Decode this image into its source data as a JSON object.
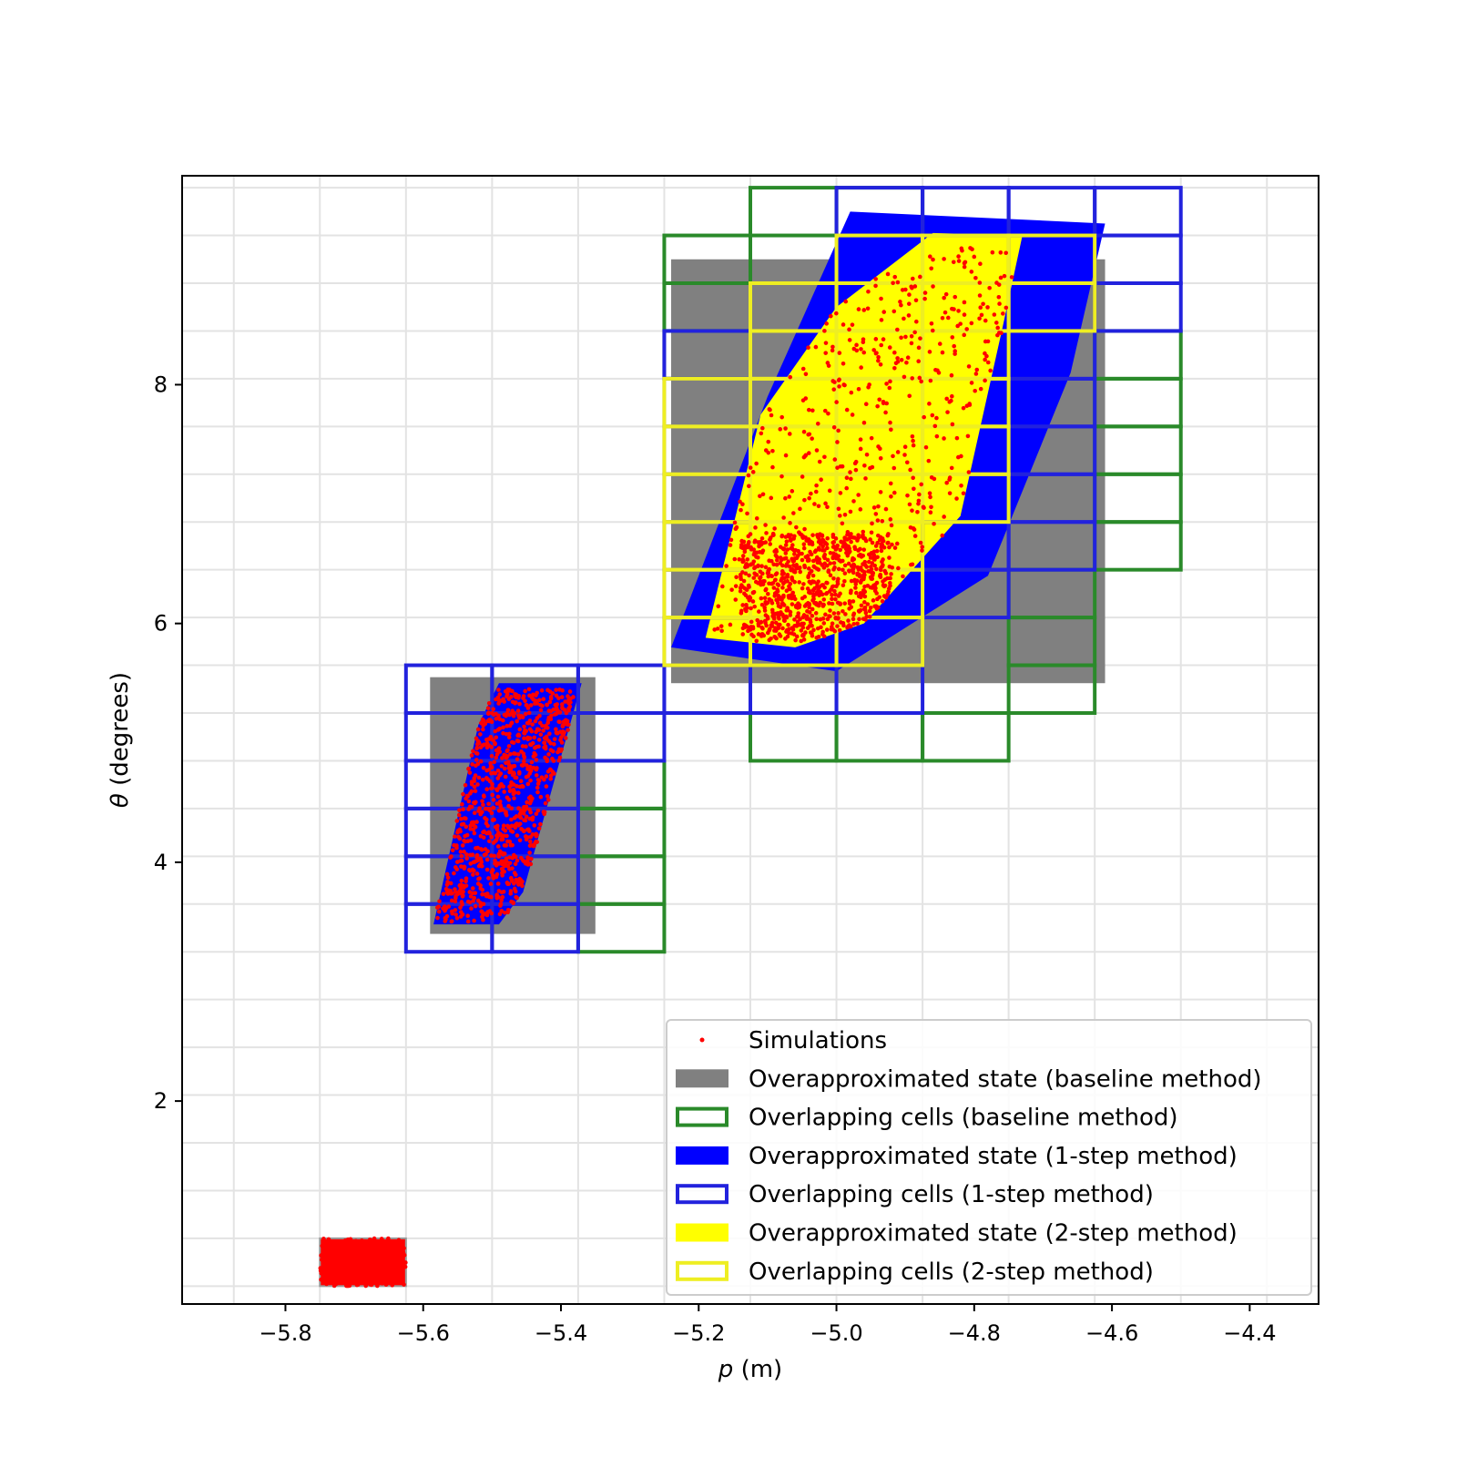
{
  "chart_data": {
    "type": "scatter",
    "title": "",
    "xlabel_var": "p",
    "xlabel_unit": " (m)",
    "ylabel_var": "θ",
    "ylabel_unit": " (degrees)",
    "xlim": [
      -5.95,
      -4.3
    ],
    "ylim": [
      0.3,
      9.75
    ],
    "xticks": [
      -5.8,
      -5.6,
      -5.4,
      -5.2,
      -5.0,
      -4.8,
      -4.6,
      -4.4
    ],
    "xtick_labels": [
      "−5.8",
      "−5.6",
      "−5.4",
      "−5.2",
      "−5.0",
      "−4.8",
      "−4.6",
      "−4.4"
    ],
    "yticks": [
      2,
      4,
      6,
      8
    ],
    "ytick_labels": [
      "2",
      "4",
      "6",
      "8"
    ],
    "grid": true,
    "grid_lines_x": [
      -5.875,
      -5.75,
      -5.625,
      -5.5,
      -5.375,
      -5.25,
      -5.125,
      -5.0,
      -4.875,
      -4.75,
      -4.625,
      -4.5,
      -4.375
    ],
    "grid_lines_y": [
      0.45,
      0.85,
      1.25,
      1.65,
      2.05,
      2.45,
      2.85,
      3.25,
      3.65,
      4.05,
      4.45,
      4.85,
      5.25,
      5.65,
      6.05,
      6.45,
      6.85,
      7.25,
      7.65,
      8.05,
      8.45,
      8.85,
      9.25,
      9.65
    ],
    "colors": {
      "simulations": "#ff0000",
      "baseline_state": "#808080",
      "baseline_cells": "#2a8a2a",
      "onestep_state": "#0000ff",
      "onestep_cells": "#2222dd",
      "twostep_state": "#ffff00",
      "twostep_cells": "#eeee22"
    },
    "initial_set": {
      "p": [
        -5.75,
        -5.625
      ],
      "theta": [
        0.45,
        0.85
      ]
    },
    "series": [
      {
        "name": "Overapproximated state (baseline method)",
        "kind": "region",
        "regions": [
          {
            "p": [
              -5.59,
              -5.35
            ],
            "theta": [
              3.4,
              5.55
            ]
          },
          {
            "p": [
              -5.24,
              -4.61
            ],
            "theta": [
              5.5,
              9.05
            ]
          }
        ]
      },
      {
        "name": "Overlapping cells (baseline method)",
        "kind": "cells",
        "cells": [
          [
            -5.375,
            3.25
          ],
          [
            -5.375,
            3.65
          ],
          [
            -5.375,
            4.05
          ],
          [
            -5.375,
            4.45
          ],
          [
            -5.25,
            8.85
          ],
          [
            -5.25,
            8.45
          ],
          [
            -5.25,
            8.05
          ],
          [
            -5.125,
            9.25
          ],
          [
            -5.0,
            9.25
          ],
          [
            -5.125,
            4.85
          ],
          [
            -5.0,
            4.85
          ],
          [
            -4.875,
            4.85
          ],
          [
            -4.75,
            5.25
          ],
          [
            -4.75,
            5.65
          ],
          [
            -4.75,
            6.05
          ],
          [
            -4.625,
            8.05
          ],
          [
            -4.625,
            7.65
          ],
          [
            -4.625,
            7.25
          ],
          [
            -4.625,
            6.85
          ],
          [
            -4.625,
            6.45
          ]
        ]
      },
      {
        "name": "Overapproximated state (1-step method)",
        "kind": "polygon",
        "polygons": [
          [
            [
              -5.585,
              3.48
            ],
            [
              -5.49,
              3.48
            ],
            [
              -5.455,
              3.75
            ],
            [
              -5.37,
              5.5
            ],
            [
              -5.49,
              5.5
            ],
            [
              -5.52,
              5.15
            ]
          ],
          [
            [
              -5.24,
              5.8
            ],
            [
              -5.1,
              7.9
            ],
            [
              -4.98,
              9.45
            ],
            [
              -4.61,
              9.35
            ],
            [
              -4.66,
              8.1
            ],
            [
              -4.78,
              6.4
            ],
            [
              -5.0,
              5.6
            ]
          ]
        ]
      },
      {
        "name": "Overlapping cells (1-step method)",
        "kind": "cells",
        "cells": [
          [
            -5.625,
            3.25
          ],
          [
            -5.625,
            3.65
          ],
          [
            -5.625,
            4.05
          ],
          [
            -5.625,
            4.45
          ],
          [
            -5.625,
            4.85
          ],
          [
            -5.625,
            5.25
          ],
          [
            -5.5,
            3.25
          ],
          [
            -5.5,
            3.65
          ],
          [
            -5.5,
            4.05
          ],
          [
            -5.5,
            4.45
          ],
          [
            -5.5,
            4.85
          ],
          [
            -5.5,
            5.25
          ],
          [
            -5.375,
            4.85
          ],
          [
            -5.375,
            5.25
          ],
          [
            -5.25,
            5.25
          ],
          [
            -5.125,
            5.25
          ],
          [
            -5.0,
            5.25
          ],
          [
            -5.25,
            8.05
          ],
          [
            -5.25,
            7.65
          ],
          [
            -5.25,
            7.25
          ],
          [
            -5.25,
            6.85
          ],
          [
            -5.25,
            6.45
          ],
          [
            -5.25,
            6.05
          ],
          [
            -5.25,
            5.65
          ],
          [
            -5.125,
            5.65
          ],
          [
            -5.0,
            5.65
          ],
          [
            -5.0,
            9.25
          ],
          [
            -4.875,
            9.25
          ],
          [
            -4.75,
            9.25
          ],
          [
            -4.625,
            9.25
          ],
          [
            -4.625,
            8.85
          ],
          [
            -4.625,
            8.45
          ],
          [
            -4.75,
            8.85
          ],
          [
            -4.75,
            8.45
          ],
          [
            -4.75,
            8.05
          ],
          [
            -4.75,
            7.65
          ],
          [
            -4.75,
            7.25
          ],
          [
            -4.75,
            6.85
          ],
          [
            -4.75,
            6.45
          ],
          [
            -4.875,
            6.45
          ],
          [
            -4.875,
            6.05
          ]
        ]
      },
      {
        "name": "Overapproximated state (2-step method)",
        "kind": "polygon",
        "polygons": [
          [
            [
              -5.19,
              5.88
            ],
            [
              -5.11,
              7.75
            ],
            [
              -5.0,
              8.65
            ],
            [
              -4.86,
              9.27
            ],
            [
              -4.73,
              9.25
            ],
            [
              -4.76,
              8.45
            ],
            [
              -4.82,
              6.9
            ],
            [
              -4.96,
              6.0
            ],
            [
              -5.06,
              5.8
            ]
          ]
        ]
      },
      {
        "name": "Overlapping cells (2-step method)",
        "kind": "cells",
        "cells": [
          [
            -5.0,
            8.85
          ],
          [
            -4.875,
            8.85
          ],
          [
            -4.75,
            8.85
          ],
          [
            -5.125,
            8.45
          ],
          [
            -5.0,
            8.45
          ],
          [
            -4.875,
            8.45
          ],
          [
            -4.75,
            8.45
          ],
          [
            -5.125,
            8.05
          ],
          [
            -5.0,
            8.05
          ],
          [
            -4.875,
            8.05
          ],
          [
            -5.25,
            7.65
          ],
          [
            -5.125,
            7.65
          ],
          [
            -5.0,
            7.65
          ],
          [
            -4.875,
            7.65
          ],
          [
            -5.25,
            7.25
          ],
          [
            -5.125,
            7.25
          ],
          [
            -5.0,
            7.25
          ],
          [
            -4.875,
            7.25
          ],
          [
            -5.25,
            6.85
          ],
          [
            -5.125,
            6.85
          ],
          [
            -5.0,
            6.85
          ],
          [
            -4.875,
            6.85
          ],
          [
            -5.25,
            6.45
          ],
          [
            -5.125,
            6.45
          ],
          [
            -5.0,
            6.45
          ],
          [
            -5.25,
            6.05
          ],
          [
            -5.125,
            6.05
          ],
          [
            -5.0,
            6.05
          ],
          [
            -5.25,
            5.65
          ],
          [
            -5.125,
            5.65
          ],
          [
            -5.0,
            5.65
          ]
        ]
      },
      {
        "name": "Simulations",
        "kind": "scatter",
        "clusters": [
          {
            "region": "initial",
            "count": 260
          },
          {
            "region": "step1",
            "count": 900,
            "bounds": {
              "p": [
                -5.58,
                -5.38
              ],
              "theta": [
                3.5,
                5.45
              ]
            }
          },
          {
            "region": "step2",
            "count": 1300,
            "bounds": {
              "p": [
                -5.18,
                -4.74
              ],
              "theta": [
                5.9,
                9.15
              ]
            },
            "dense_center": [
              -5.03,
              6.3
            ]
          }
        ]
      }
    ],
    "legend": {
      "location": "lower right",
      "entries": [
        "Simulations",
        "Overapproximated state (baseline method)",
        "Overlapping cells (baseline method)",
        "Overapproximated state (1-step method)",
        "Overlapping cells (1-step method)",
        "Overapproximated state (2-step method)",
        "Overlapping cells (2-step method)"
      ]
    }
  }
}
